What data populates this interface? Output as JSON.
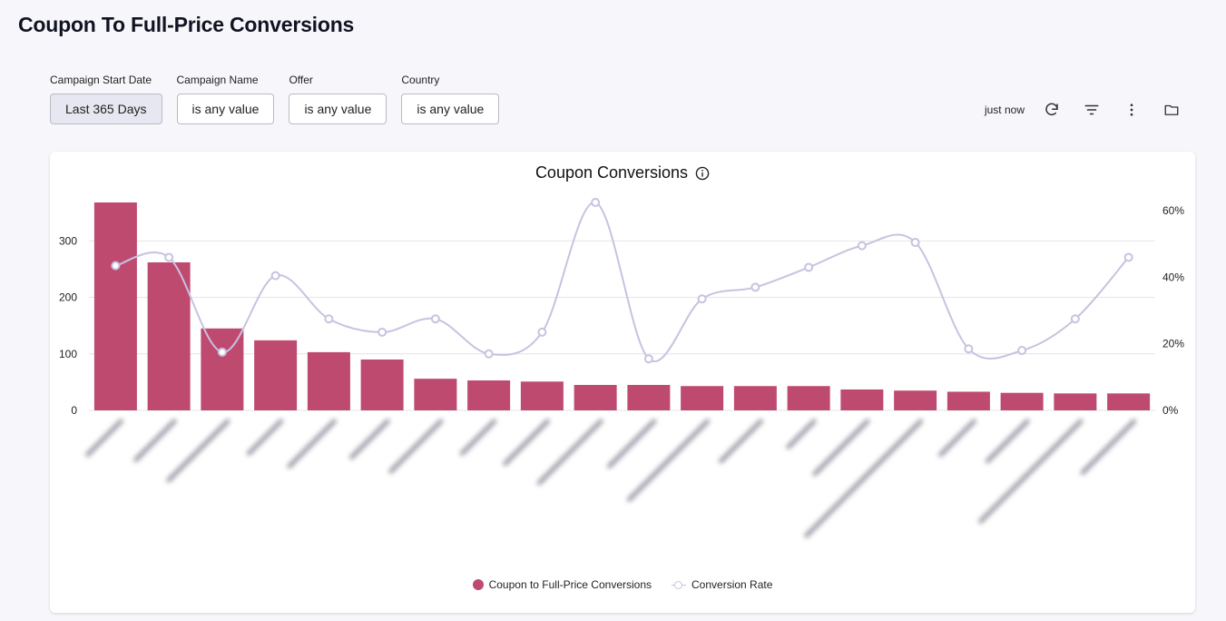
{
  "page": {
    "title": "Coupon To Full-Price Conversions"
  },
  "filters": [
    {
      "label": "Campaign Start Date",
      "value": "Last 365 Days"
    },
    {
      "label": "Campaign Name",
      "value": "is any value"
    },
    {
      "label": "Offer",
      "value": "is any value"
    },
    {
      "label": "Country",
      "value": "is any value"
    }
  ],
  "toolbar": {
    "updated": "just now",
    "icons": [
      "refresh-icon",
      "filter-icon",
      "more-vertical-icon",
      "folder-icon"
    ]
  },
  "colors": {
    "bar": "#bf4a70",
    "line": "#c6c3e0",
    "grid": "#e4e4ea",
    "accent_active_filter": "#e6e7f0"
  },
  "chart_data": {
    "type": "bar",
    "title": "Coupon Conversions",
    "xlabel": "",
    "ylabel": "",
    "categories": [
      "",
      "",
      "",
      "",
      "",
      "",
      "",
      "",
      "",
      "",
      "",
      "",
      "",
      "",
      "",
      "",
      "",
      "",
      "",
      ""
    ],
    "series": [
      {
        "name": "Coupon to Full-Price Conversions",
        "type": "bar",
        "axis": "left",
        "values": [
          368,
          262,
          145,
          124,
          103,
          90,
          56,
          53,
          51,
          45,
          45,
          43,
          43,
          43,
          37,
          35,
          33,
          31,
          30,
          30
        ]
      },
      {
        "name": "Conversion Rate",
        "type": "line",
        "axis": "right",
        "smooth": true,
        "values": [
          43.5,
          46,
          17.5,
          40.5,
          27.5,
          23.5,
          27.5,
          17,
          23.5,
          62.5,
          15.5,
          33.5,
          37,
          43,
          49.5,
          50.5,
          18.5,
          18,
          27.5,
          46
        ]
      }
    ],
    "y_left": {
      "ylim": [
        0,
        368
      ],
      "ticks": [
        0,
        100,
        200,
        300
      ],
      "tick_labels": [
        "0",
        "100",
        "200",
        "300"
      ]
    },
    "y_right": {
      "ylim": [
        0,
        62.5
      ],
      "ticks": [
        0,
        20,
        40,
        60
      ],
      "tick_labels": [
        "0%",
        "20%",
        "40%",
        "60%"
      ]
    },
    "grid": true,
    "legend": "bottom-center",
    "x_tick_labels_obscured": true
  }
}
